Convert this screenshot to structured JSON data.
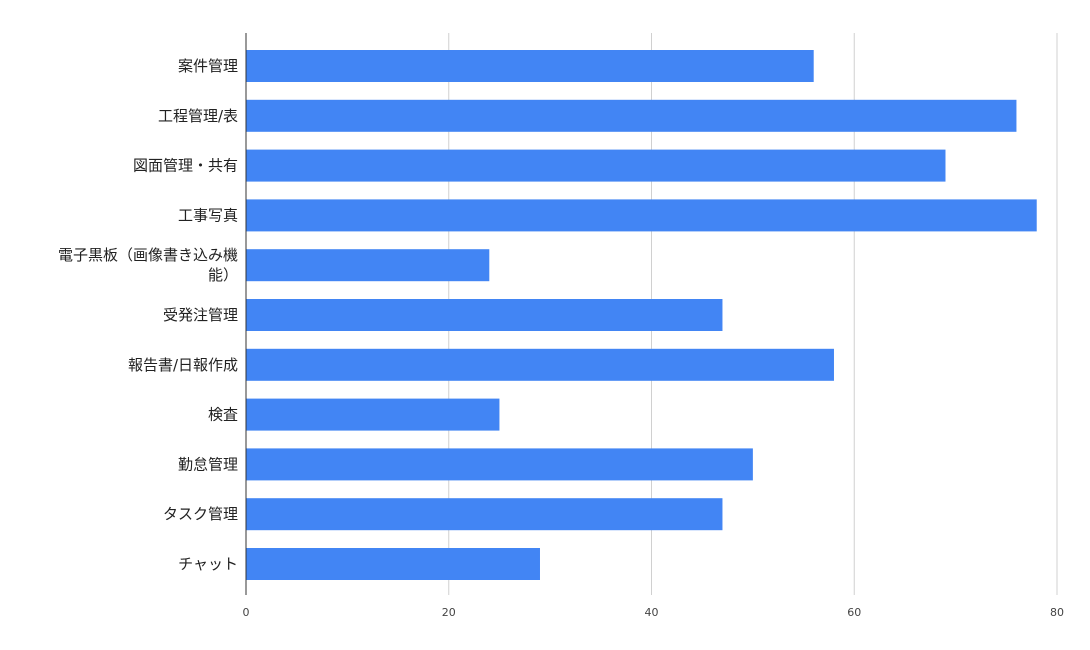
{
  "chart_data": {
    "type": "bar",
    "orientation": "horizontal",
    "categories": [
      [
        "案件管理"
      ],
      [
        "工程管理/表"
      ],
      [
        "図面管理・共有"
      ],
      [
        "工事写真"
      ],
      [
        "電子黒板（画像書き込み機",
        "能）"
      ],
      [
        "受発注管理"
      ],
      [
        "報告書/日報作成"
      ],
      [
        "検査"
      ],
      [
        "勤怠管理"
      ],
      [
        "タスク管理"
      ],
      [
        "チャット"
      ]
    ],
    "values": [
      56,
      76,
      69,
      78,
      24,
      47,
      58,
      25,
      50,
      47,
      29
    ],
    "xlim": [
      0,
      80
    ],
    "xticks": [
      0,
      20,
      40,
      60,
      80
    ],
    "grid": true,
    "bar_color": "#4285f4",
    "grid_color": "#d0d0d0",
    "axis_color": "#333333"
  }
}
